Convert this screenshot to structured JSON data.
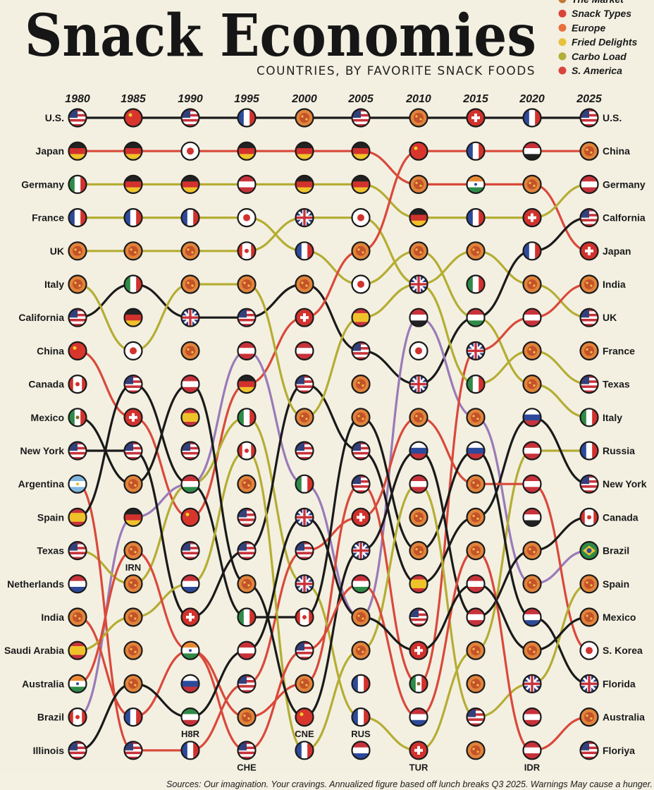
{
  "title": "Snack Economies",
  "subtitle": "COUNTRIES, BY FAVORITE SNACK FOODS",
  "legend": [
    {
      "label": "The Market",
      "color": "#c07a3a"
    },
    {
      "label": "Snack Types",
      "color": "#d9443a"
    },
    {
      "label": "Europe",
      "color": "#e8703f"
    },
    {
      "label": "Fried Delights",
      "color": "#e6c23a"
    },
    {
      "label": "Carbo Load",
      "color": "#b4ad3a"
    },
    {
      "label": "S. America",
      "color": "#d9443a"
    }
  ],
  "source": "Sources: Our imagination. Your cravings. Annualized figure based off lunch breaks Q3 2025. Warnings May cause a hunger.",
  "chart_data": {
    "type": "bump",
    "title": "Snack Economies",
    "subtitle": "COUNTRIES, BY FAVORITE SNACK FOODS",
    "years": [
      "1980",
      "1985",
      "1990",
      "1995",
      "2000",
      "2005",
      "2010",
      "2015",
      "2020",
      "2025"
    ],
    "left_labels": [
      "U.S.",
      "Japan",
      "Germany",
      "France",
      "UK",
      "Italy",
      "California",
      "China",
      "Canada",
      "Mexico",
      "New York",
      "Argentina",
      "Spain",
      "Texas",
      "Netherlands",
      "India",
      "Saudi Arabia",
      "Australia",
      "Brazil",
      "Illinois"
    ],
    "right_labels": [
      "U.S.",
      "China",
      "Germany",
      "Calfornia",
      "Japan",
      "India",
      "UK",
      "France",
      "Texas",
      "Italy",
      "Russia",
      "New York",
      "Canada",
      "Brazil",
      "Spain",
      "Mexico",
      "S. Korea",
      "Florida",
      "Australia",
      "Floriya"
    ],
    "annotations": [
      {
        "text": "IRN",
        "year": "1985",
        "rank": 14.5
      },
      {
        "text": "H8R",
        "year": "1990",
        "rank": 19.5
      },
      {
        "text": "CHE",
        "year": "1995",
        "rank": 20.5
      },
      {
        "text": "CNE",
        "year": "2000",
        "rank": 19.5
      },
      {
        "text": "RUS",
        "year": "2005",
        "rank": 19.5
      },
      {
        "text": "TUR",
        "year": "2010",
        "rank": 20.5
      },
      {
        "text": "IDR",
        "year": "2020",
        "rank": 20.5
      }
    ],
    "lines": [
      {
        "color": "#1a1a1a",
        "ranks": [
          1,
          1,
          1,
          1,
          1,
          1,
          1,
          1,
          1,
          1
        ]
      },
      {
        "color": "#d9493a",
        "ranks": [
          2,
          2,
          2,
          2,
          2,
          2,
          3,
          3,
          3,
          5
        ]
      },
      {
        "color": "#b5ad33",
        "ranks": [
          3,
          3,
          3,
          3,
          3,
          3,
          4,
          4,
          4,
          3
        ]
      },
      {
        "color": "#b5ad33",
        "ranks": [
          4,
          4,
          4,
          4,
          5,
          6,
          5,
          7,
          9,
          10
        ]
      },
      {
        "color": "#b5ad33",
        "ranks": [
          5,
          5,
          5,
          5,
          4,
          4,
          6,
          5,
          6,
          7
        ]
      },
      {
        "color": "#1a1a1a",
        "ranks": [
          7,
          6,
          7,
          7,
          6,
          8,
          9,
          7,
          5,
          4
        ]
      },
      {
        "color": "#d9493a",
        "ranks": [
          8,
          10,
          13,
          9,
          7,
          5,
          2,
          2,
          2,
          2
        ]
      },
      {
        "color": "#9a7ab8",
        "ranks": [
          19,
          13,
          12,
          8,
          12,
          16,
          7,
          10,
          15,
          14
        ]
      },
      {
        "color": "#d9493a",
        "ranks": [
          16,
          19,
          17,
          19,
          18,
          12,
          18,
          8,
          7,
          6
        ]
      },
      {
        "color": "#b5ad33",
        "ranks": [
          14,
          15,
          12,
          10,
          15,
          19,
          20,
          17,
          11,
          11
        ]
      },
      {
        "color": "#1a1a1a",
        "ranks": [
          11,
          11,
          16,
          14,
          9,
          11,
          15,
          13,
          10,
          12
        ]
      },
      {
        "color": "#d9493a",
        "ranks": [
          12,
          20,
          20,
          18,
          14,
          13,
          10,
          12,
          12,
          17
        ]
      },
      {
        "color": "#1a1a1a",
        "ranks": [
          13,
          9,
          12,
          16,
          16,
          10,
          14,
          11,
          16,
          18
        ]
      },
      {
        "color": "#b5ad33",
        "ranks": [
          17,
          16,
          15,
          11,
          20,
          17,
          12,
          19,
          18,
          15
        ]
      },
      {
        "color": "#1a1a1a",
        "ranks": [
          10,
          12,
          9,
          15,
          19,
          14,
          11,
          16,
          14,
          13
        ]
      },
      {
        "color": "#d9493a",
        "ranks": [
          18,
          14,
          17,
          20,
          17,
          15,
          19,
          14,
          20,
          19
        ]
      },
      {
        "color": "#1a1a1a",
        "ranks": [
          20,
          18,
          19,
          17,
          13,
          16,
          17,
          15,
          17,
          16
        ]
      },
      {
        "color": "#b5ad33",
        "ranks": [
          6,
          8,
          6,
          6,
          10,
          7,
          6,
          9,
          8,
          9
        ]
      }
    ],
    "flags": [
      [
        "us",
        "de",
        "it",
        "fr",
        "food",
        "food",
        "us",
        "cn",
        "ca",
        "mx",
        "us",
        "ar",
        "es",
        "us",
        "nl",
        "food",
        "es",
        "in",
        "ca",
        "us"
      ],
      [
        "cn",
        "de",
        "de",
        "fr",
        "food",
        "it",
        "de",
        "jp",
        "us",
        "ch",
        "us",
        "food",
        "de",
        "food",
        "food",
        "food",
        "food",
        "food",
        "fr",
        "us"
      ],
      [
        "us",
        "jp",
        "de",
        "fr",
        "food",
        "food",
        "gb",
        "food",
        "at",
        "es",
        "us",
        "hu",
        "cn",
        "us",
        "nl",
        "ch",
        "in",
        "ru",
        "ir",
        "fr"
      ],
      [
        "fr",
        "de",
        "at",
        "jp",
        "ca",
        "food",
        "us",
        "at",
        "de",
        "it",
        "ca",
        "food",
        "us",
        "us",
        "food",
        "it",
        "at",
        "us",
        "food",
        "us"
      ],
      [
        "food",
        "de",
        "de",
        "gb",
        "fr",
        "food",
        "ch",
        "at",
        "us",
        "food",
        "us",
        "it",
        "gb",
        "us",
        "gb",
        "ca",
        "us",
        "food",
        "cn",
        "fr"
      ],
      [
        "us",
        "de",
        "de",
        "jp",
        "food",
        "jp",
        "es",
        "us",
        "food",
        "food",
        "us",
        "us",
        "ch",
        "gb",
        "hu",
        "food",
        "food",
        "fr",
        "fr",
        "nl"
      ],
      [
        "food",
        "cn",
        "food",
        "de",
        "food",
        "gb",
        "eg",
        "jp",
        "gb",
        "food",
        "ru",
        "at",
        "food",
        "food",
        "es",
        "us",
        "ch",
        "mx",
        "nl",
        "ch"
      ],
      [
        "ch",
        "fr",
        "in",
        "fr",
        "food",
        "it",
        "hu",
        "gb",
        "it",
        "food",
        "ru",
        "food",
        "food",
        "food",
        "at",
        "at",
        "food",
        "food",
        "us",
        "food"
      ],
      [
        "fr",
        "eg",
        "food",
        "ch",
        "fr",
        "food",
        "at",
        "food",
        "food",
        "ru",
        "at",
        "at",
        "eg",
        "food",
        "food",
        "nl",
        "food",
        "gb",
        "at",
        "at"
      ],
      [
        "us",
        "food",
        "at",
        "us",
        "ch",
        "food",
        "us",
        "food",
        "us",
        "it",
        "fr",
        "us",
        "ca",
        "br",
        "food",
        "food",
        "kr",
        "gb",
        "food",
        "us"
      ]
    ]
  }
}
